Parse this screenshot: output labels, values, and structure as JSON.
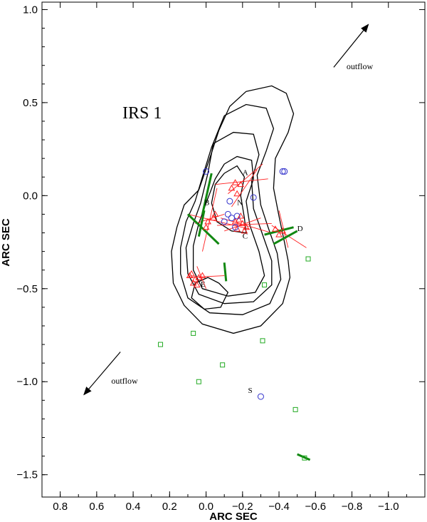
{
  "chart_data": {
    "type": "scatter",
    "title": "IRS 1",
    "xlabel": "ARC SEC",
    "ylabel": "ARC SEC",
    "xlim": [
      0.9,
      -1.2
    ],
    "ylim": [
      -1.62,
      1.04
    ],
    "xticks": [
      "0.8",
      "0.6",
      "0.4",
      "0.2",
      "0.0",
      "−0.2",
      "−0.4",
      "−0.6",
      "−0.8",
      "−1.0"
    ],
    "xtick_values": [
      0.8,
      0.6,
      0.4,
      0.2,
      0.0,
      -0.2,
      -0.4,
      -0.6,
      -0.8,
      -1.0
    ],
    "yticks": [
      "1.0",
      "0.5",
      "0.0",
      "−0.5",
      "−1.0",
      "−1.5"
    ],
    "ytick_values": [
      1.0,
      0.5,
      0.0,
      -0.5,
      -1.0,
      -1.5
    ],
    "colors": {
      "triangle": "#ff2020",
      "circle": "#3333cc",
      "square": "#22aa22",
      "bar": "#118811",
      "contour": "#000000"
    },
    "labels": [
      {
        "text": "A",
        "x": -0.2,
        "y": 0.11
      },
      {
        "text": "N",
        "x": -0.17,
        "y": -0.05
      },
      {
        "text": "B",
        "x": 0.01,
        "y": -0.05
      },
      {
        "text": "C",
        "x": -0.2,
        "y": -0.23
      },
      {
        "text": "D",
        "x": -0.5,
        "y": -0.19
      },
      {
        "text": "E",
        "x": 0.03,
        "y": -0.49
      },
      {
        "text": "S",
        "x": -0.23,
        "y": -1.06
      }
    ],
    "arrows": [
      {
        "label": "outflow",
        "from": [
          -0.7,
          0.69
        ],
        "to": [
          -0.89,
          0.92
        ],
        "label_pos": [
          -0.77,
          0.68
        ]
      },
      {
        "label": "outflow",
        "from": [
          0.47,
          -0.84
        ],
        "to": [
          0.67,
          -1.07
        ],
        "label_pos": [
          0.52,
          -1.01
        ]
      }
    ],
    "contours": [
      [
        [
          -0.22,
          0.56
        ],
        [
          -0.36,
          0.59
        ],
        [
          -0.44,
          0.55
        ],
        [
          -0.48,
          0.44
        ],
        [
          -0.45,
          0.34
        ],
        [
          -0.38,
          0.2
        ],
        [
          -0.37,
          0.04
        ],
        [
          -0.4,
          -0.11
        ],
        [
          -0.43,
          -0.25
        ],
        [
          -0.45,
          -0.35
        ],
        [
          -0.46,
          -0.44
        ],
        [
          -0.42,
          -0.58
        ],
        [
          -0.3,
          -0.7
        ],
        [
          -0.15,
          -0.74
        ],
        [
          0.02,
          -0.69
        ],
        [
          0.12,
          -0.59
        ],
        [
          0.18,
          -0.47
        ],
        [
          0.19,
          -0.3
        ],
        [
          0.16,
          -0.17
        ],
        [
          0.12,
          -0.05
        ],
        [
          0.04,
          0.03
        ],
        [
          -0.02,
          0.2
        ],
        [
          -0.07,
          0.35
        ],
        [
          -0.13,
          0.48
        ],
        [
          -0.22,
          0.56
        ]
      ],
      [
        [
          -0.1,
          0.43
        ],
        [
          -0.22,
          0.49
        ],
        [
          -0.33,
          0.47
        ],
        [
          -0.37,
          0.36
        ],
        [
          -0.33,
          0.24
        ],
        [
          -0.28,
          0.11
        ],
        [
          -0.3,
          -0.05
        ],
        [
          -0.34,
          -0.17
        ],
        [
          -0.39,
          -0.31
        ],
        [
          -0.41,
          -0.45
        ],
        [
          -0.35,
          -0.58
        ],
        [
          -0.2,
          -0.64
        ],
        [
          -0.02,
          -0.63
        ],
        [
          0.1,
          -0.55
        ],
        [
          0.14,
          -0.42
        ],
        [
          0.14,
          -0.28
        ],
        [
          0.11,
          -0.14
        ],
        [
          0.06,
          -0.03
        ],
        [
          0.02,
          0.1
        ],
        [
          -0.03,
          0.26
        ],
        [
          -0.1,
          0.43
        ]
      ],
      [
        [
          -0.04,
          0.28
        ],
        [
          -0.15,
          0.34
        ],
        [
          -0.26,
          0.33
        ],
        [
          -0.29,
          0.22
        ],
        [
          -0.25,
          0.08
        ],
        [
          -0.26,
          -0.07
        ],
        [
          -0.31,
          -0.21
        ],
        [
          -0.36,
          -0.35
        ],
        [
          -0.36,
          -0.48
        ],
        [
          -0.26,
          -0.57
        ],
        [
          -0.1,
          -0.58
        ],
        [
          0.04,
          -0.53
        ],
        [
          0.1,
          -0.42
        ],
        [
          0.11,
          -0.28
        ],
        [
          0.07,
          -0.15
        ],
        [
          0.03,
          -0.04
        ],
        [
          -0.01,
          0.12
        ],
        [
          -0.04,
          0.28
        ]
      ],
      [
        [
          -0.1,
          0.17
        ],
        [
          -0.17,
          0.21
        ],
        [
          -0.25,
          0.19
        ],
        [
          -0.26,
          0.09
        ],
        [
          -0.22,
          -0.03
        ],
        [
          -0.24,
          -0.16
        ],
        [
          -0.29,
          -0.3
        ],
        [
          -0.32,
          -0.43
        ],
        [
          -0.27,
          -0.52
        ],
        [
          -0.12,
          -0.54
        ],
        [
          0.02,
          -0.5
        ],
        [
          0.07,
          -0.4
        ],
        [
          0.07,
          -0.27
        ],
        [
          0.04,
          -0.15
        ],
        [
          0.0,
          -0.04
        ],
        [
          -0.05,
          0.09
        ],
        [
          -0.1,
          0.17
        ]
      ],
      [
        [
          -0.1,
          0.12
        ],
        [
          -0.17,
          0.16
        ],
        [
          -0.21,
          0.1
        ],
        [
          -0.19,
          0.0
        ],
        [
          -0.21,
          -0.12
        ],
        [
          -0.22,
          -0.2
        ],
        [
          -0.14,
          -0.19
        ],
        [
          -0.06,
          -0.14
        ],
        [
          -0.03,
          -0.04
        ],
        [
          -0.05,
          0.06
        ],
        [
          -0.1,
          0.12
        ]
      ],
      [
        [
          -0.07,
          -0.47
        ],
        [
          -0.12,
          -0.52
        ],
        [
          -0.08,
          -0.6
        ],
        [
          0.01,
          -0.61
        ],
        [
          0.08,
          -0.55
        ],
        [
          0.06,
          -0.47
        ],
        [
          -0.01,
          -0.44
        ],
        [
          -0.07,
          -0.47
        ]
      ]
    ],
    "series_circles": {
      "name": "",
      "x": [
        0.0,
        -0.42,
        -0.43,
        -0.26,
        -0.13,
        -0.12,
        -0.14,
        -0.1,
        -0.16,
        -0.17,
        -0.3
      ],
      "y": [
        0.13,
        0.13,
        0.13,
        -0.01,
        -0.03,
        -0.1,
        -0.12,
        -0.14,
        -0.17,
        -0.11,
        -1.08
      ]
    },
    "series_triangles": {
      "name": "",
      "x": [
        -0.19,
        -0.16,
        -0.14,
        -0.17,
        -0.04,
        -0.01,
        0.0,
        -0.05,
        -0.18,
        -0.2,
        -0.22,
        -0.17,
        -0.19,
        -0.16,
        -0.21,
        -0.4,
        -0.42,
        -0.38,
        0.02,
        0.04,
        0.06,
        0.08,
        0.05,
        0.07,
        0.09
      ],
      "y": [
        0.06,
        0.07,
        0.04,
        0.01,
        -0.12,
        -0.14,
        -0.17,
        -0.1,
        -0.13,
        -0.15,
        -0.17,
        -0.18,
        -0.11,
        -0.14,
        -0.19,
        -0.21,
        -0.19,
        -0.18,
        -0.43,
        -0.44,
        -0.45,
        -0.42,
        -0.48,
        -0.47,
        -0.43
      ]
    },
    "series_squares": {
      "name": "",
      "x": [
        -0.56,
        -0.32,
        0.07,
        0.25,
        -0.31,
        -0.09,
        0.04,
        -0.49,
        -0.54
      ],
      "y": [
        -0.34,
        -0.48,
        -0.74,
        -0.8,
        -0.78,
        -0.91,
        -1.0,
        -1.15,
        -1.41
      ]
    },
    "vectors_red": [
      [
        [
          -0.05,
          0.06
        ],
        [
          -0.34,
          0.09
        ]
      ],
      [
        [
          -0.12,
          0.01
        ],
        [
          -0.31,
          0.17
        ]
      ],
      [
        [
          -0.14,
          -0.06
        ],
        [
          -0.28,
          0.14
        ]
      ],
      [
        [
          0.1,
          -0.1
        ],
        [
          -0.24,
          -0.18
        ]
      ],
      [
        [
          0.02,
          -0.3
        ],
        [
          -0.06,
          0.04
        ]
      ],
      [
        [
          0.06,
          -0.15
        ],
        [
          -0.1,
          -0.1
        ]
      ],
      [
        [
          -0.06,
          -0.16
        ],
        [
          -0.36,
          -0.15
        ]
      ],
      [
        [
          -0.08,
          -0.12
        ],
        [
          -0.36,
          -0.2
        ]
      ],
      [
        [
          -0.1,
          -0.19
        ],
        [
          -0.3,
          -0.12
        ]
      ],
      [
        [
          -0.36,
          -0.16
        ],
        [
          -0.55,
          -0.28
        ]
      ],
      [
        [
          -0.4,
          -0.08
        ],
        [
          -0.45,
          -0.28
        ]
      ],
      [
        [
          0.1,
          -0.44
        ],
        [
          -0.1,
          -0.43
        ]
      ],
      [
        [
          0.05,
          -0.38
        ],
        [
          0.0,
          -0.5
        ]
      ]
    ],
    "vectors_green": [
      [
        [
          -0.03,
          0.12
        ],
        [
          0.02,
          -0.1
        ]
      ],
      [
        [
          0.1,
          -0.1
        ],
        [
          -0.07,
          -0.26
        ]
      ],
      [
        [
          0.04,
          -0.22
        ],
        [
          0.01,
          -0.08
        ]
      ],
      [
        [
          -0.32,
          -0.21
        ],
        [
          -0.48,
          -0.17
        ]
      ],
      [
        [
          -0.37,
          -0.26
        ],
        [
          -0.5,
          -0.19
        ]
      ],
      [
        [
          -0.1,
          -0.36
        ],
        [
          -0.11,
          -0.46
        ]
      ],
      [
        [
          -0.5,
          -1.39
        ],
        [
          -0.57,
          -1.42
        ]
      ]
    ]
  }
}
